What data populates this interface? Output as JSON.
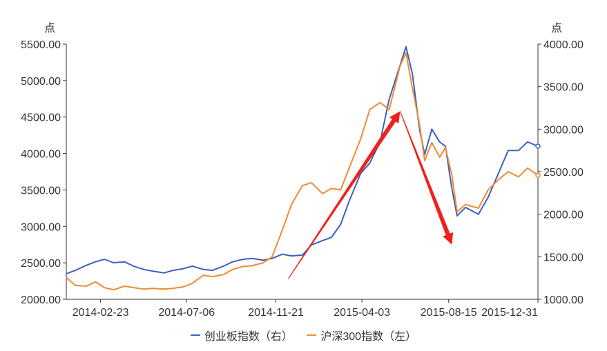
{
  "chart_data": {
    "type": "line",
    "title": "",
    "left_axis": {
      "unit": "点",
      "ticks": [
        "2000.00",
        "2500.00",
        "3000.00",
        "3500.00",
        "4000.00",
        "4500.00",
        "5000.00",
        "5500.00"
      ],
      "range": [
        2000,
        5500
      ]
    },
    "right_axis": {
      "unit": "点",
      "ticks": [
        "1000.00",
        "1500.00",
        "2000.00",
        "2500.00",
        "3000.00",
        "3500.00",
        "4000.00"
      ],
      "range": [
        1000,
        4000
      ]
    },
    "x_axis": {
      "ticks": [
        "2014-02-23",
        "2014-07-06",
        "2014-11-21",
        "2015-04-03",
        "2015-08-15",
        "2015-12-31"
      ],
      "range": [
        "2014-01-01",
        "2015-12-31"
      ]
    },
    "series": [
      {
        "name": "创业板指数（右）",
        "axis": "right",
        "color": "#3A5FC0",
        "points": [
          [
            "2014-01-01",
            1300
          ],
          [
            "2014-01-15",
            1340
          ],
          [
            "2014-02-01",
            1400
          ],
          [
            "2014-02-15",
            1440
          ],
          [
            "2014-03-01",
            1470
          ],
          [
            "2014-03-15",
            1430
          ],
          [
            "2014-04-01",
            1440
          ],
          [
            "2014-04-15",
            1390
          ],
          [
            "2014-05-01",
            1350
          ],
          [
            "2014-05-15",
            1330
          ],
          [
            "2014-06-01",
            1310
          ],
          [
            "2014-06-15",
            1340
          ],
          [
            "2014-07-01",
            1360
          ],
          [
            "2014-07-15",
            1390
          ],
          [
            "2014-08-01",
            1350
          ],
          [
            "2014-08-15",
            1340
          ],
          [
            "2014-09-01",
            1390
          ],
          [
            "2014-09-15",
            1440
          ],
          [
            "2014-10-01",
            1470
          ],
          [
            "2014-10-15",
            1480
          ],
          [
            "2014-11-01",
            1460
          ],
          [
            "2014-11-15",
            1480
          ],
          [
            "2014-12-01",
            1530
          ],
          [
            "2014-12-15",
            1510
          ],
          [
            "2015-01-01",
            1520
          ],
          [
            "2015-01-15",
            1640
          ],
          [
            "2015-02-01",
            1690
          ],
          [
            "2015-02-15",
            1730
          ],
          [
            "2015-03-01",
            1880
          ],
          [
            "2015-03-15",
            2170
          ],
          [
            "2015-04-01",
            2480
          ],
          [
            "2015-04-15",
            2600
          ],
          [
            "2015-05-01",
            2850
          ],
          [
            "2015-05-15",
            3350
          ],
          [
            "2015-06-03",
            3800
          ],
          [
            "2015-06-10",
            3970
          ],
          [
            "2015-06-20",
            3650
          ],
          [
            "2015-07-01",
            3000
          ],
          [
            "2015-07-09",
            2700
          ],
          [
            "2015-07-20",
            3000
          ],
          [
            "2015-08-01",
            2850
          ],
          [
            "2015-08-10",
            2800
          ],
          [
            "2015-08-20",
            2300
          ],
          [
            "2015-08-28",
            1980
          ],
          [
            "2015-09-10",
            2080
          ],
          [
            "2015-09-30",
            2000
          ],
          [
            "2015-10-15",
            2200
          ],
          [
            "2015-11-01",
            2500
          ],
          [
            "2015-11-15",
            2750
          ],
          [
            "2015-12-01",
            2750
          ],
          [
            "2015-12-15",
            2850
          ],
          [
            "2015-12-31",
            2800
          ]
        ]
      },
      {
        "name": "沪深300指数（左）",
        "axis": "left",
        "color": "#F28A2E",
        "points": [
          [
            "2014-01-01",
            2300
          ],
          [
            "2014-01-15",
            2190
          ],
          [
            "2014-02-01",
            2180
          ],
          [
            "2014-02-15",
            2240
          ],
          [
            "2014-03-01",
            2160
          ],
          [
            "2014-03-15",
            2130
          ],
          [
            "2014-04-01",
            2180
          ],
          [
            "2014-04-15",
            2160
          ],
          [
            "2014-05-01",
            2140
          ],
          [
            "2014-05-15",
            2150
          ],
          [
            "2014-06-01",
            2140
          ],
          [
            "2014-06-15",
            2150
          ],
          [
            "2014-07-01",
            2170
          ],
          [
            "2014-07-15",
            2220
          ],
          [
            "2014-08-01",
            2330
          ],
          [
            "2014-08-15",
            2310
          ],
          [
            "2014-09-01",
            2340
          ],
          [
            "2014-09-15",
            2410
          ],
          [
            "2014-10-01",
            2450
          ],
          [
            "2014-10-15",
            2460
          ],
          [
            "2014-11-01",
            2500
          ],
          [
            "2014-11-15",
            2580
          ],
          [
            "2014-12-01",
            2950
          ],
          [
            "2014-12-15",
            3300
          ],
          [
            "2015-01-01",
            3560
          ],
          [
            "2015-01-15",
            3600
          ],
          [
            "2015-02-01",
            3450
          ],
          [
            "2015-02-15",
            3520
          ],
          [
            "2015-03-01",
            3500
          ],
          [
            "2015-03-15",
            3820
          ],
          [
            "2015-04-01",
            4200
          ],
          [
            "2015-04-15",
            4600
          ],
          [
            "2015-05-01",
            4700
          ],
          [
            "2015-05-15",
            4600
          ],
          [
            "2015-06-01",
            5200
          ],
          [
            "2015-06-10",
            5380
          ],
          [
            "2015-06-20",
            4900
          ],
          [
            "2015-07-01",
            4400
          ],
          [
            "2015-07-09",
            3900
          ],
          [
            "2015-07-20",
            4150
          ],
          [
            "2015-08-01",
            3950
          ],
          [
            "2015-08-10",
            4080
          ],
          [
            "2015-08-20",
            3700
          ],
          [
            "2015-08-28",
            3200
          ],
          [
            "2015-09-10",
            3300
          ],
          [
            "2015-09-30",
            3250
          ],
          [
            "2015-10-15",
            3500
          ],
          [
            "2015-11-01",
            3650
          ],
          [
            "2015-11-15",
            3750
          ],
          [
            "2015-12-01",
            3680
          ],
          [
            "2015-12-15",
            3800
          ],
          [
            "2015-12-31",
            3700
          ]
        ]
      }
    ],
    "annotations": [
      {
        "type": "arrow",
        "color": "#F0201A",
        "from": [
          "2014-12-10",
          2280
        ],
        "to": [
          "2015-06-01",
          4580
        ]
      },
      {
        "type": "arrow",
        "color": "#F0201A",
        "from": [
          "2015-06-01",
          4580
        ],
        "to": [
          "2015-08-20",
          2750
        ]
      }
    ],
    "grid": false,
    "legend_position": "bottom-center"
  }
}
